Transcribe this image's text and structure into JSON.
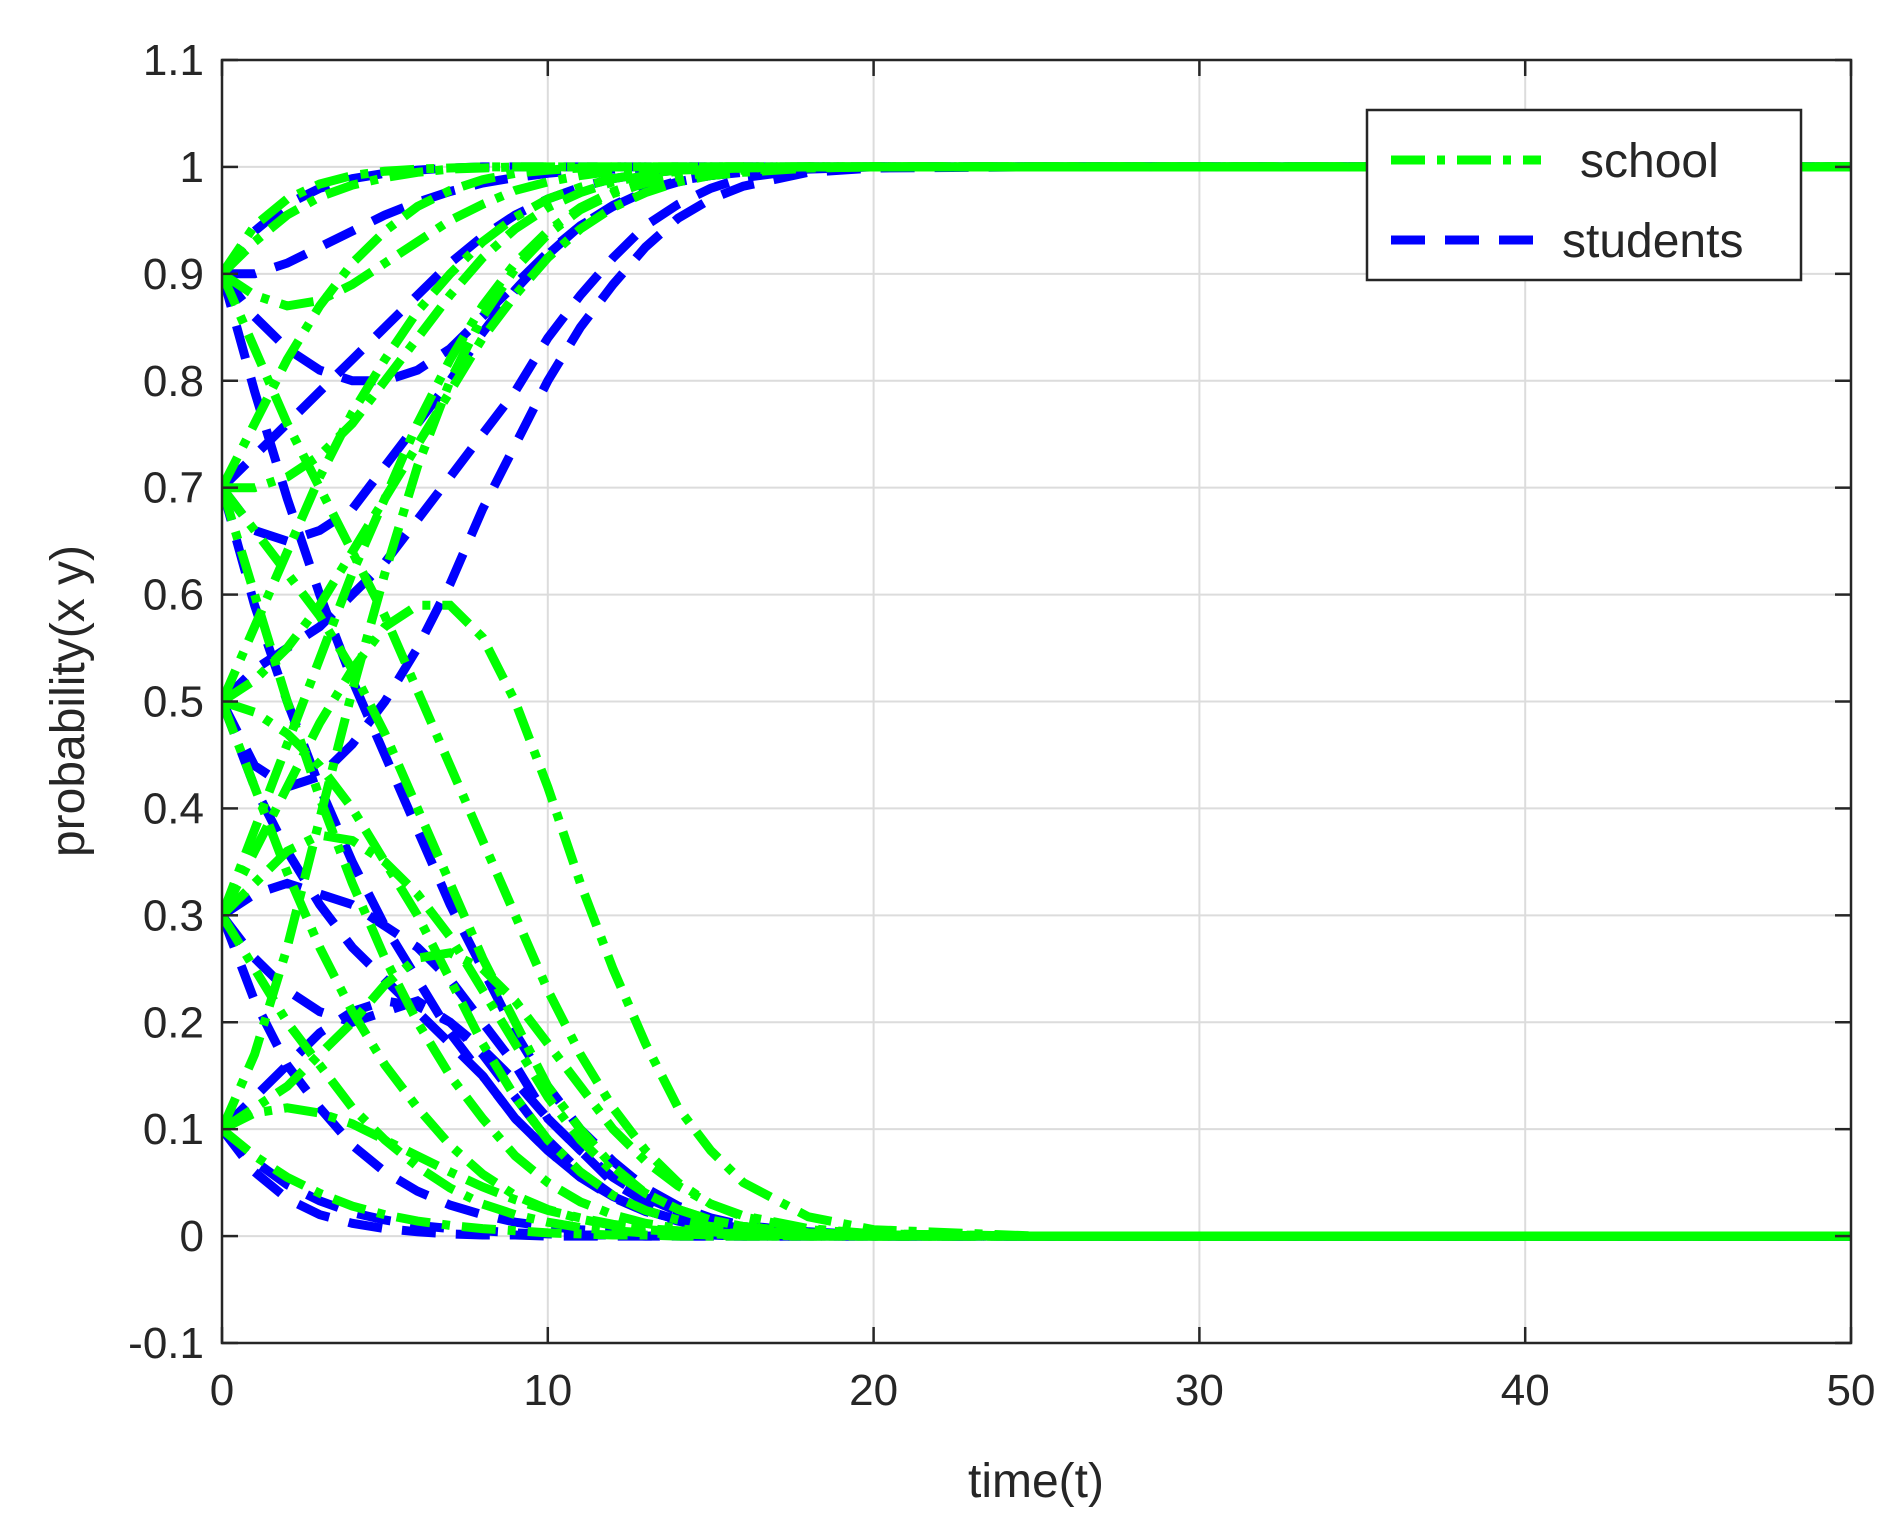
{
  "chart_data": {
    "type": "line",
    "xlabel": "time(t)",
    "ylabel": "probability(x y)",
    "xlim": [
      0,
      50
    ],
    "ylim": [
      -0.1,
      1.1
    ],
    "xticks": [
      0,
      10,
      20,
      30,
      40,
      50
    ],
    "yticks": [
      -0.1,
      0,
      0.1,
      0.2,
      0.3,
      0.4,
      0.5,
      0.6,
      0.7,
      0.8,
      0.9,
      1,
      1.1
    ],
    "xtick_labels": [
      "0",
      "10",
      "20",
      "30",
      "40",
      "50"
    ],
    "ytick_labels": [
      "-0.1",
      "0",
      "0.1",
      "0.2",
      "0.3",
      "0.4",
      "0.5",
      "0.6",
      "0.7",
      "0.8",
      "0.9",
      "1",
      "1.1"
    ],
    "grid": true,
    "legend_position": "top-right",
    "legend": [
      {
        "label": "school",
        "color": "#00ff00",
        "dash": "dash-dot"
      },
      {
        "label": "students",
        "color": "#0000ff",
        "dash": "dashed"
      }
    ],
    "x": [
      0,
      1,
      2,
      3,
      4,
      5,
      6,
      7,
      8,
      9,
      10,
      11,
      12,
      13,
      14,
      15,
      16,
      18,
      20,
      25,
      30,
      40,
      50
    ],
    "series": [
      {
        "group": "school",
        "values": [
          0.9,
          0.945,
          0.97,
          0.984,
          0.992,
          0.996,
          0.998,
          0.999,
          1,
          1,
          1,
          1,
          1,
          1,
          1,
          1,
          1,
          1,
          1,
          1,
          1,
          1,
          1
        ]
      },
      {
        "group": "school",
        "values": [
          0.9,
          0.93,
          0.955,
          0.972,
          0.983,
          0.99,
          0.995,
          0.998,
          0.999,
          1,
          1,
          1,
          1,
          1,
          1,
          1,
          1,
          1,
          1,
          1,
          1,
          1,
          1
        ]
      },
      {
        "group": "school",
        "values": [
          0.9,
          0.88,
          0.87,
          0.875,
          0.89,
          0.91,
          0.93,
          0.95,
          0.965,
          0.978,
          0.986,
          0.992,
          0.996,
          0.998,
          0.999,
          1,
          1,
          1,
          1,
          1,
          1,
          1,
          1
        ]
      },
      {
        "group": "school",
        "values": [
          0.9,
          0.83,
          0.76,
          0.7,
          0.64,
          0.58,
          0.51,
          0.44,
          0.37,
          0.3,
          0.23,
          0.17,
          0.12,
          0.08,
          0.05,
          0.03,
          0.018,
          0.006,
          0.002,
          0,
          0,
          0,
          0
        ]
      },
      {
        "group": "school",
        "values": [
          0.7,
          0.76,
          0.82,
          0.87,
          0.91,
          0.94,
          0.963,
          0.978,
          0.988,
          0.994,
          0.997,
          0.999,
          1,
          1,
          1,
          1,
          1,
          1,
          1,
          1,
          1,
          1,
          1
        ]
      },
      {
        "group": "school",
        "values": [
          0.7,
          0.7,
          0.71,
          0.73,
          0.76,
          0.8,
          0.84,
          0.88,
          0.915,
          0.942,
          0.962,
          0.976,
          0.986,
          0.992,
          0.996,
          0.998,
          0.999,
          1,
          1,
          1,
          1,
          1,
          1
        ]
      },
      {
        "group": "school",
        "values": [
          0.7,
          0.66,
          0.62,
          0.58,
          0.53,
          0.47,
          0.4,
          0.33,
          0.26,
          0.2,
          0.14,
          0.1,
          0.065,
          0.04,
          0.025,
          0.015,
          0.009,
          0.003,
          0.001,
          0,
          0,
          0,
          0
        ]
      },
      {
        "group": "school",
        "values": [
          0.7,
          0.6,
          0.5,
          0.41,
          0.33,
          0.26,
          0.2,
          0.15,
          0.11,
          0.075,
          0.05,
          0.032,
          0.02,
          0.012,
          0.007,
          0.004,
          0.002,
          0.001,
          0,
          0,
          0,
          0,
          0
        ]
      },
      {
        "group": "school",
        "values": [
          0.5,
          0.57,
          0.64,
          0.71,
          0.77,
          0.82,
          0.865,
          0.9,
          0.93,
          0.953,
          0.97,
          0.981,
          0.989,
          0.994,
          0.997,
          0.998,
          0.999,
          1,
          1,
          1,
          1,
          1,
          1
        ]
      },
      {
        "group": "school",
        "values": [
          0.5,
          0.52,
          0.55,
          0.59,
          0.64,
          0.69,
          0.74,
          0.79,
          0.84,
          0.88,
          0.915,
          0.942,
          0.962,
          0.976,
          0.986,
          0.992,
          0.995,
          0.999,
          1,
          1,
          1,
          1,
          1
        ]
      },
      {
        "group": "school",
        "values": [
          0.5,
          0.49,
          0.47,
          0.44,
          0.4,
          0.35,
          0.3,
          0.24,
          0.18,
          0.13,
          0.09,
          0.06,
          0.038,
          0.024,
          0.015,
          0.009,
          0.005,
          0.002,
          0.001,
          0,
          0,
          0,
          0
        ]
      },
      {
        "group": "school",
        "values": [
          0.5,
          0.42,
          0.34,
          0.27,
          0.21,
          0.16,
          0.12,
          0.085,
          0.058,
          0.038,
          0.025,
          0.016,
          0.01,
          0.006,
          0.004,
          0.002,
          0.001,
          0,
          0,
          0,
          0,
          0,
          0
        ]
      },
      {
        "group": "school",
        "values": [
          0.3,
          0.38,
          0.46,
          0.54,
          0.62,
          0.69,
          0.76,
          0.82,
          0.87,
          0.91,
          0.94,
          0.962,
          0.977,
          0.987,
          0.993,
          0.996,
          0.998,
          1,
          1,
          1,
          1,
          1,
          1
        ]
      },
      {
        "group": "school",
        "values": [
          0.3,
          0.33,
          0.36,
          0.375,
          0.37,
          0.35,
          0.32,
          0.28,
          0.23,
          0.18,
          0.13,
          0.09,
          0.06,
          0.04,
          0.025,
          0.015,
          0.009,
          0.003,
          0.001,
          0,
          0,
          0,
          0
        ]
      },
      {
        "group": "school",
        "values": [
          0.3,
          0.25,
          0.2,
          0.16,
          0.12,
          0.09,
          0.065,
          0.045,
          0.03,
          0.02,
          0.013,
          0.008,
          0.005,
          0.003,
          0.002,
          0.001,
          0,
          0,
          0,
          0,
          0,
          0,
          0
        ]
      },
      {
        "group": "school",
        "values": [
          0.3,
          0.36,
          0.42,
          0.48,
          0.53,
          0.57,
          0.59,
          0.59,
          0.56,
          0.5,
          0.42,
          0.33,
          0.25,
          0.18,
          0.12,
          0.08,
          0.05,
          0.018,
          0.006,
          0,
          0,
          0,
          0
        ]
      },
      {
        "group": "school",
        "values": [
          0.1,
          0.12,
          0.14,
          0.17,
          0.2,
          0.235,
          0.26,
          0.265,
          0.25,
          0.22,
          0.18,
          0.14,
          0.1,
          0.07,
          0.047,
          0.03,
          0.019,
          0.007,
          0.002,
          0,
          0,
          0,
          0
        ]
      },
      {
        "group": "school",
        "values": [
          0.1,
          0.115,
          0.12,
          0.115,
          0.105,
          0.09,
          0.075,
          0.06,
          0.046,
          0.034,
          0.024,
          0.017,
          0.011,
          0.007,
          0.005,
          0.003,
          0.002,
          0.001,
          0,
          0,
          0,
          0,
          0
        ]
      },
      {
        "group": "school",
        "values": [
          0.1,
          0.075,
          0.055,
          0.04,
          0.028,
          0.02,
          0.014,
          0.01,
          0.007,
          0.005,
          0.003,
          0.002,
          0.001,
          0.001,
          0,
          0,
          0,
          0,
          0,
          0,
          0,
          0,
          0
        ]
      },
      {
        "group": "school",
        "values": [
          0.1,
          0.17,
          0.27,
          0.39,
          0.51,
          0.62,
          0.72,
          0.8,
          0.86,
          0.905,
          0.937,
          0.96,
          0.975,
          0.985,
          0.991,
          0.995,
          0.997,
          0.999,
          1,
          1,
          1,
          1,
          1
        ]
      },
      {
        "group": "students",
        "values": [
          0.9,
          0.94,
          0.965,
          0.98,
          0.989,
          0.994,
          0.997,
          0.999,
          1,
          1,
          1,
          1,
          1,
          1,
          1,
          1,
          1,
          1,
          1,
          1,
          1,
          1,
          1
        ]
      },
      {
        "group": "students",
        "values": [
          0.9,
          0.9,
          0.91,
          0.925,
          0.94,
          0.955,
          0.967,
          0.977,
          0.985,
          0.99,
          0.994,
          0.997,
          0.998,
          0.999,
          1,
          1,
          1,
          1,
          1,
          1,
          1,
          1,
          1
        ]
      },
      {
        "group": "students",
        "values": [
          0.9,
          0.86,
          0.83,
          0.81,
          0.8,
          0.8,
          0.81,
          0.83,
          0.86,
          0.89,
          0.92,
          0.945,
          0.963,
          0.977,
          0.986,
          0.992,
          0.995,
          0.999,
          1,
          1,
          1,
          1,
          1
        ]
      },
      {
        "group": "students",
        "values": [
          0.9,
          0.79,
          0.69,
          0.6,
          0.52,
          0.45,
          0.38,
          0.31,
          0.25,
          0.19,
          0.14,
          0.1,
          0.07,
          0.045,
          0.028,
          0.017,
          0.01,
          0.004,
          0.001,
          0,
          0,
          0,
          0
        ]
      },
      {
        "group": "students",
        "values": [
          0.7,
          0.73,
          0.76,
          0.79,
          0.82,
          0.85,
          0.88,
          0.91,
          0.935,
          0.955,
          0.97,
          0.981,
          0.989,
          0.994,
          0.997,
          0.998,
          0.999,
          1,
          1,
          1,
          1,
          1,
          1
        ]
      },
      {
        "group": "students",
        "values": [
          0.7,
          0.66,
          0.65,
          0.66,
          0.68,
          0.72,
          0.76,
          0.8,
          0.845,
          0.885,
          0.918,
          0.945,
          0.964,
          0.978,
          0.987,
          0.992,
          0.995,
          0.999,
          1,
          1,
          1,
          1,
          1
        ]
      },
      {
        "group": "students",
        "values": [
          0.7,
          0.59,
          0.5,
          0.42,
          0.35,
          0.29,
          0.24,
          0.19,
          0.15,
          0.11,
          0.08,
          0.055,
          0.037,
          0.024,
          0.015,
          0.009,
          0.005,
          0.002,
          0.001,
          0,
          0,
          0,
          0
        ]
      },
      {
        "group": "students",
        "values": [
          0.5,
          0.53,
          0.55,
          0.57,
          0.6,
          0.63,
          0.67,
          0.71,
          0.75,
          0.79,
          0.84,
          0.88,
          0.915,
          0.945,
          0.965,
          0.98,
          0.99,
          0.998,
          1,
          1,
          1,
          1,
          1
        ]
      },
      {
        "group": "students",
        "values": [
          0.5,
          0.44,
          0.42,
          0.43,
          0.46,
          0.5,
          0.55,
          0.61,
          0.68,
          0.74,
          0.8,
          0.85,
          0.89,
          0.925,
          0.952,
          0.97,
          0.982,
          0.995,
          0.999,
          1,
          1,
          1,
          1
        ]
      },
      {
        "group": "students",
        "values": [
          0.5,
          0.42,
          0.36,
          0.31,
          0.27,
          0.24,
          0.21,
          0.18,
          0.15,
          0.11,
          0.08,
          0.055,
          0.036,
          0.023,
          0.014,
          0.008,
          0.005,
          0.002,
          0,
          0,
          0,
          0,
          0
        ]
      },
      {
        "group": "students",
        "values": [
          0.3,
          0.32,
          0.33,
          0.32,
          0.31,
          0.29,
          0.27,
          0.24,
          0.2,
          0.16,
          0.11,
          0.08,
          0.05,
          0.032,
          0.02,
          0.012,
          0.007,
          0.002,
          0.001,
          0,
          0,
          0,
          0
        ]
      },
      {
        "group": "students",
        "values": [
          0.3,
          0.26,
          0.23,
          0.21,
          0.2,
          0.21,
          0.22,
          0.2,
          0.17,
          0.13,
          0.09,
          0.06,
          0.038,
          0.024,
          0.015,
          0.009,
          0.005,
          0.002,
          0,
          0,
          0,
          0,
          0
        ]
      },
      {
        "group": "students",
        "values": [
          0.3,
          0.22,
          0.16,
          0.12,
          0.085,
          0.06,
          0.042,
          0.029,
          0.02,
          0.013,
          0.009,
          0.006,
          0.004,
          0.002,
          0.001,
          0.001,
          0,
          0,
          0,
          0,
          0,
          0,
          0
        ]
      },
      {
        "group": "students",
        "values": [
          0.1,
          0.13,
          0.16,
          0.19,
          0.21,
          0.22,
          0.215,
          0.2,
          0.175,
          0.145,
          0.11,
          0.08,
          0.055,
          0.036,
          0.023,
          0.014,
          0.009,
          0.003,
          0.001,
          0,
          0,
          0,
          0
        ]
      },
      {
        "group": "students",
        "values": [
          0.1,
          0.07,
          0.048,
          0.033,
          0.022,
          0.015,
          0.01,
          0.007,
          0.005,
          0.003,
          0.002,
          0.001,
          0.001,
          0,
          0,
          0,
          0,
          0,
          0,
          0,
          0,
          0,
          0
        ]
      },
      {
        "group": "students",
        "values": [
          0.1,
          0.06,
          0.035,
          0.02,
          0.012,
          0.007,
          0.004,
          0.002,
          0.001,
          0.001,
          0,
          0,
          0,
          0,
          0,
          0,
          0,
          0,
          0,
          0,
          0,
          0,
          0
        ]
      }
    ]
  }
}
